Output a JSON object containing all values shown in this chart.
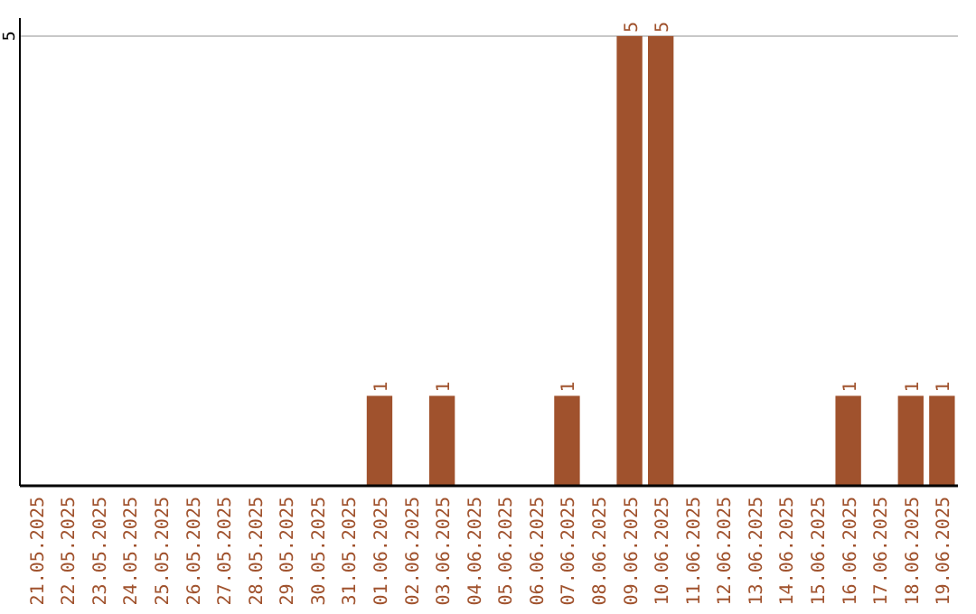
{
  "chart_data": {
    "type": "bar",
    "categories": [
      "21.05.2025",
      "22.05.2025",
      "23.05.2025",
      "24.05.2025",
      "25.05.2025",
      "26.05.2025",
      "27.05.2025",
      "28.05.2025",
      "29.05.2025",
      "30.05.2025",
      "31.05.2025",
      "01.06.2025",
      "02.06.2025",
      "03.06.2025",
      "04.06.2025",
      "05.06.2025",
      "06.06.2025",
      "07.06.2025",
      "08.06.2025",
      "09.06.2025",
      "10.06.2025",
      "11.06.2025",
      "12.06.2025",
      "13.06.2025",
      "14.06.2025",
      "15.06.2025",
      "16.06.2025",
      "17.06.2025",
      "18.06.2025",
      "19.06.2025"
    ],
    "values": [
      0,
      0,
      0,
      0,
      0,
      0,
      0,
      0,
      0,
      0,
      0,
      1,
      0,
      1,
      0,
      0,
      0,
      1,
      0,
      5,
      5,
      0,
      0,
      0,
      0,
      0,
      1,
      0,
      1,
      1
    ],
    "value_labels": [
      null,
      null,
      null,
      null,
      null,
      null,
      null,
      null,
      null,
      null,
      null,
      "1",
      null,
      "1",
      null,
      null,
      null,
      "1",
      null,
      "5",
      "5",
      null,
      null,
      null,
      null,
      null,
      "1",
      null,
      "1",
      "1"
    ],
    "color": "#a0522d",
    "ylim": [
      0,
      5.2
    ],
    "yticks": [
      5
    ],
    "grid": "y"
  }
}
